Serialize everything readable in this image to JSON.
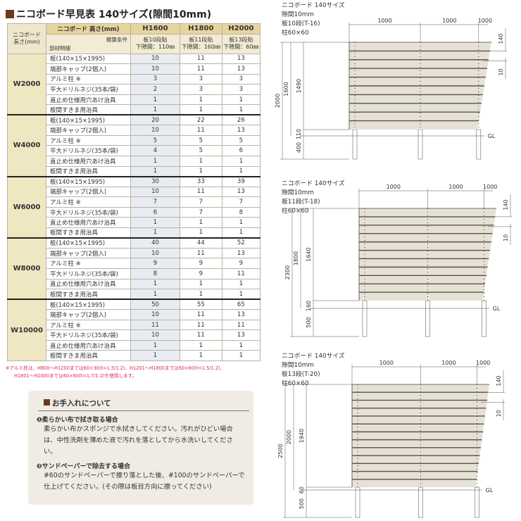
{
  "title": "ニコボード早見表 140サイズ(隙間10mm)",
  "table": {
    "header_height_label": "ニコボード 高さ(mm)",
    "corner_label": "ニコボード\n長さ(mm)",
    "calc_label": "積算条件",
    "parts_label": "部材明細",
    "columns": [
      {
        "h": "H1600",
        "cond1": "板10段貼",
        "cond2": "下隙間：110㎜"
      },
      {
        "h": "H1800",
        "cond1": "板11段貼",
        "cond2": "下隙間：160㎜"
      },
      {
        "h": "H2000",
        "cond1": "板13段貼",
        "cond2": "下隙間：60㎜"
      }
    ],
    "groups": [
      {
        "w": "W2000",
        "rows": [
          [
            "板(140×15×1995)",
            "10",
            "11",
            "13"
          ],
          [
            "端部キャップ(2個入)",
            "10",
            "11",
            "13"
          ],
          [
            "アルミ柱 ※",
            "3",
            "3",
            "3"
          ],
          [
            "平大ドリルネジ(35本/袋)",
            "2",
            "3",
            "3"
          ],
          [
            "直止め仕様用穴あけ治具",
            "1",
            "1",
            "1"
          ],
          [
            "板間すきま用治具",
            "1",
            "1",
            "1"
          ]
        ]
      },
      {
        "w": "W4000",
        "rows": [
          [
            "板(140×15×1995)",
            "20",
            "22",
            "26"
          ],
          [
            "端部キャップ(2個入)",
            "10",
            "11",
            "13"
          ],
          [
            "アルミ柱 ※",
            "5",
            "5",
            "5"
          ],
          [
            "平大ドリルネジ(35本/袋)",
            "4",
            "5",
            "6"
          ],
          [
            "直止め仕様用穴あけ治具",
            "1",
            "1",
            "1"
          ],
          [
            "板間すきま用治具",
            "1",
            "1",
            "1"
          ]
        ]
      },
      {
        "w": "W6000",
        "rows": [
          [
            "板(140×15×1995)",
            "30",
            "33",
            "39"
          ],
          [
            "端部キャップ(2個入)",
            "10",
            "11",
            "13"
          ],
          [
            "アルミ柱 ※",
            "7",
            "7",
            "7"
          ],
          [
            "平大ドリルネジ(35本/袋)",
            "6",
            "7",
            "8"
          ],
          [
            "直止め仕様用穴あけ治具",
            "1",
            "1",
            "1"
          ],
          [
            "板間すきま用治具",
            "1",
            "1",
            "1"
          ]
        ]
      },
      {
        "w": "W8000",
        "rows": [
          [
            "板(140×15×1995)",
            "40",
            "44",
            "52"
          ],
          [
            "端部キャップ(2個入)",
            "10",
            "11",
            "13"
          ],
          [
            "アルミ柱 ※",
            "9",
            "9",
            "9"
          ],
          [
            "平大ドリルネジ(35本/袋)",
            "8",
            "9",
            "11"
          ],
          [
            "直止め仕様用穴あけ治具",
            "1",
            "1",
            "1"
          ],
          [
            "板間すきま用治具",
            "1",
            "1",
            "1"
          ]
        ]
      },
      {
        "w": "W10000",
        "rows": [
          [
            "板(140×15×1995)",
            "50",
            "55",
            "65"
          ],
          [
            "端部キャップ(2個入)",
            "10",
            "11",
            "13"
          ],
          [
            "アルミ柱 ※",
            "11",
            "11",
            "11"
          ],
          [
            "平大ドリルネジ(35本/袋)",
            "10",
            "11",
            "13"
          ],
          [
            "直止め仕様用穴あけ治具",
            "1",
            "1",
            "1"
          ],
          [
            "板間すきま用治具",
            "1",
            "1",
            "1"
          ]
        ]
      }
    ]
  },
  "note": {
    "line1": "※アルミ柱は、H800〜H1200までは60×30(t=1.5/1.2)、H1201〜H1800までは60×60(t=1.5/1.2)、",
    "line2": "H1801〜H2000までは60×60(t=1.7/1.2)を使用します。"
  },
  "care": {
    "title": "お手入れについて",
    "s1_title": "❶柔らかい布で拭き取る場合",
    "s1_text": "柔らかい布かスポンジで水拭きしてください。汚れがひどい場合は、中性洗剤を薄めた液で汚れを落としてから水洗いしてください。",
    "s2_title": "❷サンドペーパーで除去する場合",
    "s2_text": "#60のサンドペーパーで擦り落とした後、#100のサンドペーパーで仕上げてください。(その際は板目方向に擦ってください)"
  },
  "diagrams": [
    {
      "lines": [
        "ニコボード 140サイズ",
        "隙間10mm",
        "板10段(T-16)",
        "柱60×60"
      ],
      "spans": [
        "1000",
        "1000",
        "1000"
      ],
      "board": "140",
      "gap": "10",
      "total": "2000",
      "height": "1600",
      "panel": "1490",
      "bottom": "110",
      "embed": "400",
      "gl": "GL",
      "boards": 10
    },
    {
      "lines": [
        "ニコボード 140サイズ",
        "隙間10mm",
        "板11段(T-18)",
        "柱60×60"
      ],
      "spans": [
        "1000",
        "1000",
        "1000"
      ],
      "board": "140",
      "gap": "10",
      "total": "2300",
      "height": "1800",
      "panel": "1640",
      "bottom": "160",
      "embed": "500",
      "gl": "GL",
      "boards": 11
    },
    {
      "lines": [
        "ニコボード 140サイズ",
        "隙間10mm",
        "板13段(T-20)",
        "柱60×60"
      ],
      "spans": [
        "1000",
        "1000",
        "1000"
      ],
      "board": "140",
      "gap": "10",
      "total": "2500",
      "height": "2000",
      "panel": "1940",
      "bottom": "60",
      "embed": "500",
      "gl": "GL",
      "boards": 13
    }
  ],
  "colors": {
    "header": "#e6d59d",
    "wcol": "#efe6c2",
    "accent": "#6b3a1e",
    "board": "#e6e1d5",
    "note": "#e0245e"
  }
}
